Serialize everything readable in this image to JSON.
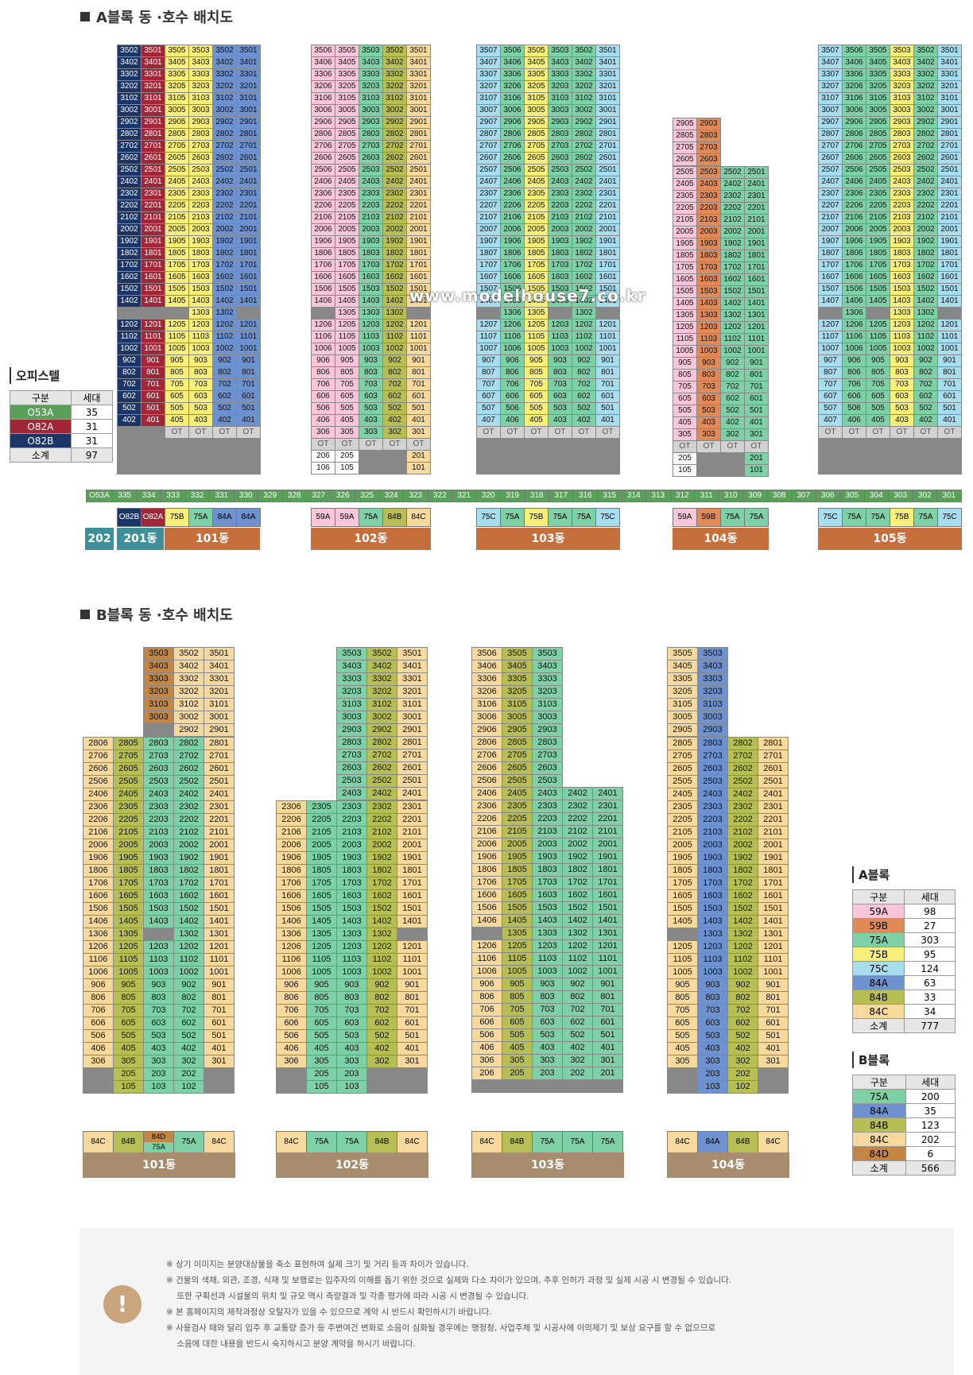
{
  "titles": {
    "a": "A블록 동 ·호수 배치도",
    "b": "B블록 동 ·호수 배치도"
  },
  "watermark": "www.modelhouse7.co.kr",
  "officetel": {
    "title": "오피스텔",
    "head": [
      "구분",
      "세대"
    ],
    "rows": [
      {
        "type": "O53A",
        "count": "35",
        "color": "#5aa05a"
      },
      {
        "type": "O82A",
        "count": "31",
        "color": "#a02638"
      },
      {
        "type": "O82B",
        "count": "31",
        "color": "#1a3566"
      }
    ],
    "total": [
      "소계",
      "97"
    ]
  },
  "a_legend": {
    "title": "A블록",
    "head": [
      "구분",
      "세대"
    ],
    "rows": [
      {
        "type": "59A",
        "count": "98",
        "color": "#f8c6d8"
      },
      {
        "type": "59B",
        "count": "27",
        "color": "#e18a58"
      },
      {
        "type": "75A",
        "count": "303",
        "color": "#7ed0a6"
      },
      {
        "type": "75B",
        "count": "95",
        "color": "#f7ef7a"
      },
      {
        "type": "75C",
        "count": "124",
        "color": "#a7ddef"
      },
      {
        "type": "84A",
        "count": "63",
        "color": "#6e92cf"
      },
      {
        "type": "84B",
        "count": "33",
        "color": "#b7bf54"
      },
      {
        "type": "84C",
        "count": "34",
        "color": "#f7d99d"
      }
    ],
    "total": [
      "소계",
      "777"
    ]
  },
  "b_legend": {
    "title": "B블록",
    "head": [
      "구분",
      "세대"
    ],
    "rows": [
      {
        "type": "75A",
        "count": "200",
        "color": "#7ed0a6"
      },
      {
        "type": "84A",
        "count": "35",
        "color": "#6e92cf"
      },
      {
        "type": "84B",
        "count": "123",
        "color": "#b7bf54"
      },
      {
        "type": "84C",
        "count": "202",
        "color": "#f7d99d"
      },
      {
        "type": "84D",
        "count": "6",
        "color": "#c58644"
      }
    ],
    "total": [
      "소계",
      "566"
    ]
  },
  "strip": {
    "label": "O53A",
    "units": [
      "335",
      "334",
      "333",
      "332",
      "331",
      "330",
      "329",
      "328",
      "327",
      "326",
      "325",
      "324",
      "323",
      "322",
      "321",
      "320",
      "319",
      "318",
      "317",
      "316",
      "315",
      "314",
      "313",
      "312",
      "311",
      "310",
      "309",
      "308",
      "307",
      "306",
      "305",
      "304",
      "303",
      "302",
      "301"
    ]
  },
  "a_buildings": [
    {
      "name": "101동",
      "types": [
        "75B",
        "75A",
        "84A",
        "84A"
      ],
      "extra": [
        {
          "name": "202동"
        },
        {
          "name": "201동",
          "types": [
            "O82B",
            "O82A"
          ]
        }
      ]
    },
    {
      "name": "102동",
      "types": [
        "59A",
        "59A",
        "75A",
        "84B",
        "84C"
      ]
    },
    {
      "name": "103동",
      "types": [
        "75C",
        "75A",
        "75B",
        "75A",
        "75A",
        "75C"
      ]
    },
    {
      "name": "104동",
      "types": [
        "59A",
        "59B",
        "75A",
        "75A"
      ]
    },
    {
      "name": "105동",
      "types": [
        "75C",
        "75A",
        "75A",
        "75B",
        "75A",
        "75C"
      ]
    }
  ],
  "b_buildings": [
    {
      "name": "101동",
      "types": [
        "84C",
        "84B",
        "84D/75A",
        "75A",
        "84C"
      ]
    },
    {
      "name": "102동",
      "types": [
        "84C",
        "75A",
        "75A",
        "84B",
        "84C"
      ]
    },
    {
      "name": "103동",
      "types": [
        "84C",
        "84B",
        "75A",
        "75A",
        "75A"
      ]
    },
    {
      "name": "104동",
      "types": [
        "84C",
        "84A",
        "84B",
        "84C"
      ]
    }
  ],
  "notes": "※ 상기 이미지는 분양대상물을 축소 표현하여 실제 크기 및 거리 등과 차이가 있습니다.\n※ 건물의 색채, 외관, 조경, 식재 및 보행로는 입주자의 이해를 돕기 위한 것으로 실제와 다소 차이가 있으며, 추후 인허가 과정 및 실제 시공 시 변경될 수 있습니다.\n    또한 구획선과 시설물의 위치 및 규모 역시 측량결과 및 각종 평가에 따라 시공 시 변경될 수 있습니다.\n※ 본 홈페이지의 제작과정상 오탈자가 있을 수 있으므로 계약 시 반드시 확인하시기 바랍니다.\n※ 사용검사 때와 달리 입주 후 교통량 증가 등 주변여건 변화로 소음이 심화될 경우에는 행정청, 사업주체 및 시공사에 이의제기 및 보상 요구를 할 수 없으므로\n    소음에 대한 내용을 반드시 숙지하시고 분양 계약을 하시기 바랍니다."
}
